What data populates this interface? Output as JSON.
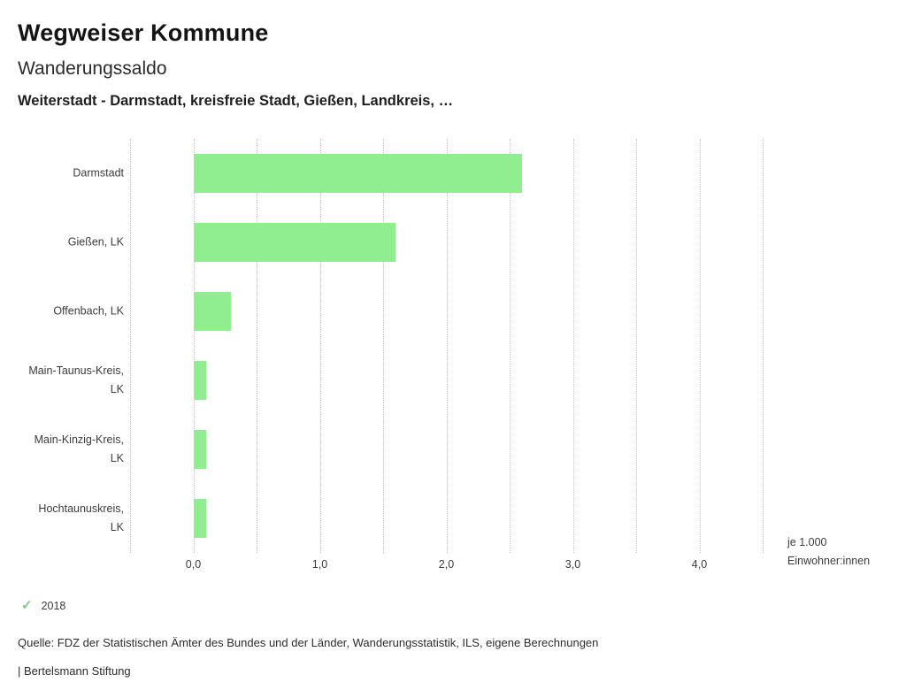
{
  "header": {
    "title": "Wegweiser Kommune",
    "subtitle": "Wanderungssaldo",
    "description": "Weiterstadt - Darmstadt, kreisfreie Stadt, Gießen, Landkreis, …"
  },
  "chart_data": {
    "type": "bar",
    "orientation": "horizontal",
    "title": "Wanderungssaldo",
    "subtitle": "Weiterstadt - Darmstadt, kreisfreie Stadt, Gießen, Landkreis, …",
    "categories": [
      "Darmstadt",
      "Gießen, LK",
      "Offenbach, LK",
      "Main-Taunus-Kreis, LK",
      "Main-Kinzig-Kreis, LK",
      "Hochtaunuskreis, LK"
    ],
    "series": [
      {
        "name": "2018",
        "values": [
          2.6,
          1.6,
          0.3,
          0.1,
          0.1,
          0.1
        ]
      }
    ],
    "unit": "je 1.000 Einwohner:innen",
    "unit_label_line1": "je 1.000",
    "unit_label_line2": "Einwohner:innen",
    "xlim": [
      -0.5,
      4.5
    ],
    "xticks": [
      0,
      1,
      2,
      3,
      4
    ],
    "xtick_labels": [
      "0,0",
      "1,0",
      "2,0",
      "3,0",
      "4,0"
    ],
    "grid": true,
    "grid_step": 0.5,
    "bar_color": "#90ee90",
    "legend_position": "bottom-left"
  },
  "legend": {
    "check_icon": "✓",
    "check_color": "#7dc980",
    "items": [
      {
        "label": "2018",
        "selected": true
      }
    ]
  },
  "footer": {
    "source": "Quelle: FDZ der Statistischen Ämter des Bundes und der Länder, Wanderungsstatistik, ILS, eigene Berechnungen",
    "branding": "| Bertelsmann Stiftung"
  }
}
